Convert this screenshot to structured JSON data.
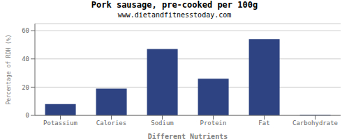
{
  "chart_data": {
    "type": "bar",
    "title": "Pork sausage, pre-cooked per 100g",
    "subtitle": "www.dietandfitnesstoday.com",
    "xlabel": "Different Nutrients",
    "ylabel": "Percentage of RDH (%)",
    "categories": [
      "Potassium",
      "Calories",
      "Sodium",
      "Protein",
      "Fat",
      "Carbohydrate"
    ],
    "values": [
      8,
      19,
      47,
      26,
      54,
      0.5
    ],
    "color": "#2e4482",
    "ylim": [
      0,
      65
    ],
    "yticks": [
      0,
      20,
      40,
      60
    ],
    "grid": true
  }
}
